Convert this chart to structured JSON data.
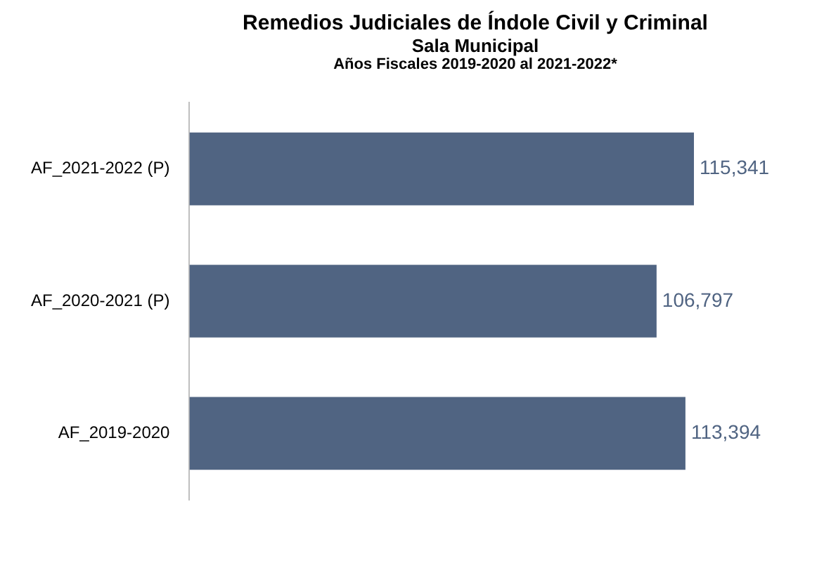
{
  "chart_data": {
    "type": "bar",
    "orientation": "horizontal",
    "title": "Remedios Judiciales de Índole Civil y Criminal",
    "subtitle": "Sala Municipal",
    "annotations": [
      "Años Fiscales 2019-2020 al 2021-2022*"
    ],
    "categories": [
      "AF_2021-2022 (P)",
      "AF_2020-2021 (P)",
      "AF_2019-2020"
    ],
    "series": [
      {
        "color": "#506482",
        "values": [
          115341,
          106797,
          113394
        ],
        "value_labels": [
          "115,341",
          "106,797",
          "113,394"
        ]
      }
    ],
    "grid": false,
    "legend": false
  }
}
